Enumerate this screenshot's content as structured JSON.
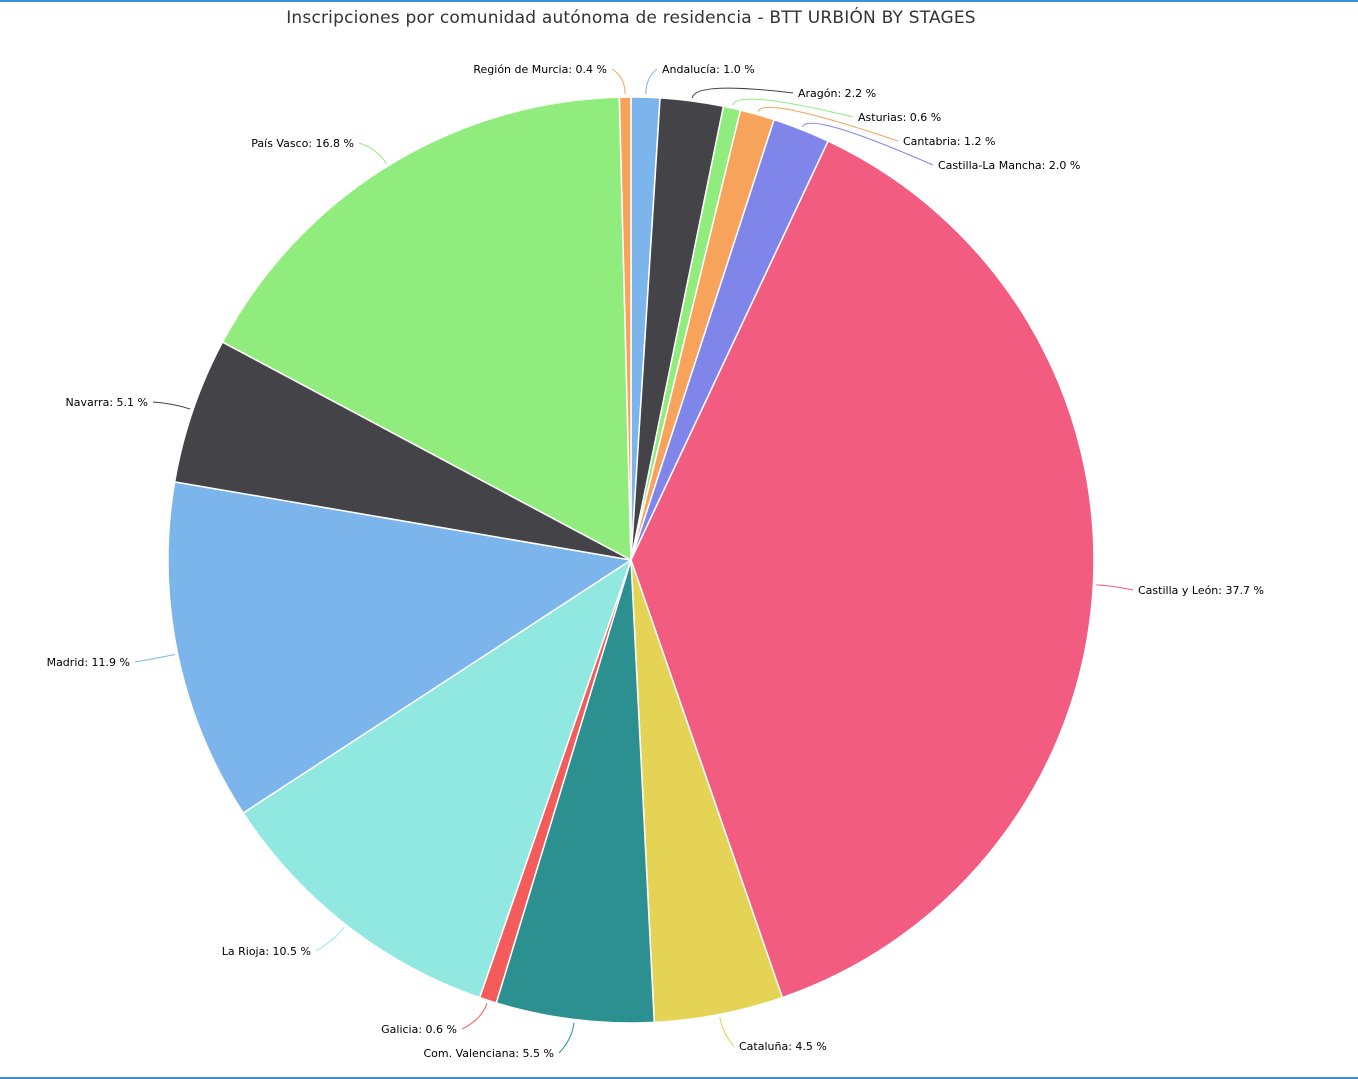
{
  "chart_data": {
    "type": "pie",
    "title": "Inscripciones por comunidad autónoma de residencia - BTT URBIÓN BY STAGES",
    "value_suffix": " %",
    "slices": [
      {
        "name": "Andalucía",
        "value": 1.0,
        "color": "#7cb5ec"
      },
      {
        "name": "Aragón",
        "value": 2.2,
        "color": "#434348"
      },
      {
        "name": "Asturias",
        "value": 0.6,
        "color": "#90ed7d"
      },
      {
        "name": "Cantabria",
        "value": 1.2,
        "color": "#f7a35c"
      },
      {
        "name": "Castilla-La Mancha",
        "value": 2.0,
        "color": "#8085e9"
      },
      {
        "name": "Castilla y León",
        "value": 37.7,
        "color": "#f15c80"
      },
      {
        "name": "Cataluña",
        "value": 4.5,
        "color": "#e4d354"
      },
      {
        "name": "Com. Valenciana",
        "value": 5.5,
        "color": "#2b908f"
      },
      {
        "name": "Galicia",
        "value": 0.6,
        "color": "#f45b5b"
      },
      {
        "name": "La Rioja",
        "value": 10.5,
        "color": "#91e8e1"
      },
      {
        "name": "Madrid",
        "value": 11.9,
        "color": "#7cb5ec"
      },
      {
        "name": "Navarra",
        "value": 5.1,
        "color": "#434348"
      },
      {
        "name": "País Vasco",
        "value": 16.8,
        "color": "#90ed7d"
      },
      {
        "name": "Región de Murcia",
        "value": 0.4,
        "color": "#f7a35c"
      }
    ]
  }
}
